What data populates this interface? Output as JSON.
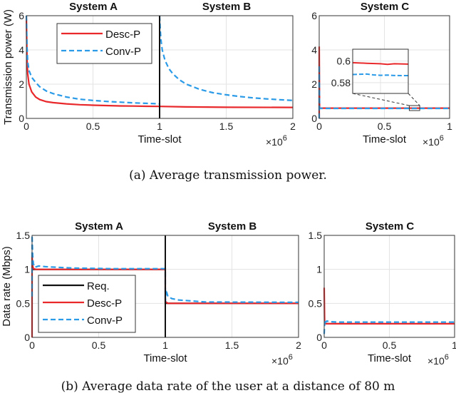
{
  "chart_data": [
    {
      "type": "line",
      "caption": "(a) Average transmission power.",
      "ylabel": "Transmission power (W)",
      "xlabel": "Time-slot",
      "x_multiplier": "×10^6",
      "colors": {
        "Desc-P": "#e8282b",
        "Conv-P": "#2b9be8"
      },
      "legend": {
        "placement": "top-left of System A",
        "entries": [
          "Desc-P",
          "Conv-P"
        ]
      },
      "panels": [
        {
          "title": "System A / System B",
          "titles": [
            "System A",
            "System B"
          ],
          "xlim": [
            0,
            2
          ],
          "ylim": [
            0,
            6
          ],
          "xticks": [
            "0",
            "0.5",
            "1",
            "1.5",
            "2"
          ],
          "yticks": [
            "0",
            "2",
            "4",
            "6"
          ],
          "series": [
            {
              "name": "Desc-P",
              "style": "solid",
              "x": [
                0,
                0.005,
                0.01,
                0.02,
                0.04,
                0.07,
                0.1,
                0.15,
                0.2,
                0.3,
                0.4,
                0.5,
                0.6,
                0.7,
                0.8,
                0.9,
                1.0,
                1.2,
                1.5,
                2.0
              ],
              "y": [
                6,
                3.5,
                2.6,
                2.0,
                1.55,
                1.25,
                1.1,
                0.98,
                0.92,
                0.85,
                0.8,
                0.77,
                0.75,
                0.73,
                0.72,
                0.71,
                0.7,
                0.67,
                0.65,
                0.64
              ]
            },
            {
              "name": "Conv-P",
              "style": "dashed",
              "x": [
                0,
                0.005,
                0.01,
                0.02,
                0.04,
                0.07,
                0.1,
                0.15,
                0.2,
                0.3,
                0.4,
                0.5,
                0.6,
                0.7,
                0.8,
                0.9,
                1.0
              ],
              "y": [
                6,
                4.2,
                3.3,
                2.8,
                2.4,
                2.1,
                1.85,
                1.6,
                1.45,
                1.25,
                1.12,
                1.05,
                0.99,
                0.95,
                0.91,
                0.88,
                0.85
              ]
            },
            {
              "name": "Conv-P",
              "style": "dashed",
              "x": [
                1,
                1.005,
                1.01,
                1.02,
                1.04,
                1.07,
                1.1,
                1.15,
                1.2,
                1.3,
                1.4,
                1.5,
                1.6,
                1.7,
                1.8,
                1.9,
                2.0
              ],
              "y": [
                6,
                5.2,
                4.6,
                4.0,
                3.4,
                2.9,
                2.6,
                2.25,
                2.0,
                1.7,
                1.5,
                1.38,
                1.28,
                1.2,
                1.14,
                1.09,
                1.05
              ]
            }
          ]
        },
        {
          "title": "System C",
          "titles": [
            "System C"
          ],
          "xlim": [
            0,
            1
          ],
          "ylim": [
            0,
            6
          ],
          "xticks": [
            "0",
            "0.5",
            "1"
          ],
          "yticks": [
            "0",
            "2",
            "4",
            "6"
          ],
          "series": [
            {
              "name": "Desc-P",
              "style": "solid",
              "x": [
                0,
                0,
                0.003,
                0.006,
                1
              ],
              "y": [
                0,
                4.2,
                0.62,
                0.6,
                0.6
              ]
            },
            {
              "name": "Conv-P",
              "style": "dashed",
              "x": [
                0,
                0,
                0.003,
                0.006,
                1
              ],
              "y": [
                0,
                3.1,
                0.6,
                0.585,
                0.584
              ]
            }
          ],
          "inset": {
            "xlim": [
              0.68,
              0.76
            ],
            "ylim": [
              0.57,
              0.611
            ],
            "yticks": [
              "0.58",
              "0.6"
            ],
            "series": [
              {
                "name": "Desc-P",
                "style": "solid",
                "x": [
                  0.68,
                  0.7,
                  0.72,
                  0.73,
                  0.74,
                  0.76
                ],
                "y": [
                  0.5985,
                  0.598,
                  0.5975,
                  0.597,
                  0.5975,
                  0.5972
                ]
              },
              {
                "name": "Conv-P",
                "style": "dashed",
                "x": [
                  0.68,
                  0.69,
                  0.7,
                  0.71,
                  0.72,
                  0.73,
                  0.74,
                  0.76
                ],
                "y": [
                  0.5875,
                  0.5878,
                  0.588,
                  0.5872,
                  0.5868,
                  0.587,
                  0.5866,
                  0.5865
                ]
              }
            ]
          }
        }
      ]
    },
    {
      "type": "line",
      "caption": "(b) Average data rate of the user at a distance of 80 m",
      "ylabel": "Data rate (Mbps)",
      "xlabel": "Time-slot",
      "x_multiplier": "×10^6",
      "colors": {
        "Req.": "#111111",
        "Desc-P": "#e8282b",
        "Conv-P": "#2b9be8"
      },
      "legend": {
        "placement": "bottom-left of System A",
        "entries": [
          "Req.",
          "Desc-P",
          "Conv-P"
        ]
      },
      "panels": [
        {
          "title": "System A / System B",
          "titles": [
            "System A",
            "System B"
          ],
          "xlim": [
            0,
            2
          ],
          "ylim": [
            0,
            1.5
          ],
          "xticks": [
            "0",
            "0.5",
            "1",
            "1.5",
            "2"
          ],
          "yticks": [
            "0",
            "0.5",
            "1",
            "1.5"
          ],
          "series": [
            {
              "name": "Req.",
              "style": "solid",
              "x": [
                0,
                1,
                1,
                2
              ],
              "y": [
                1,
                1,
                0.5,
                0.5
              ]
            },
            {
              "name": "Desc-P",
              "style": "solid",
              "x": [
                0,
                0,
                0.005,
                0.01,
                0.03,
                0.1,
                1,
                1,
                1.005,
                1.02,
                2
              ],
              "y": [
                0,
                1.2,
                1.05,
                1.01,
                1.0,
                1.0,
                1.0,
                0.5,
                0.52,
                0.5,
                0.5
              ]
            },
            {
              "name": "Conv-P",
              "style": "dashed",
              "x": [
                0,
                0,
                0.005,
                0.01,
                0.02,
                0.05,
                0.1,
                0.3,
                0.6,
                1,
                1,
                1.005,
                1.02,
                1.05,
                1.1,
                1.3,
                2
              ],
              "y": [
                0.6,
                1.5,
                1.2,
                1.08,
                1.03,
                1.05,
                1.04,
                1.02,
                1.01,
                1.01,
                0.5,
                0.7,
                0.6,
                0.57,
                0.55,
                0.52,
                0.515
              ]
            }
          ]
        },
        {
          "title": "System C",
          "titles": [
            "System C"
          ],
          "xlim": [
            0,
            1
          ],
          "ylim": [
            0,
            1.5
          ],
          "xticks": [
            "0",
            "0.5",
            "1"
          ],
          "yticks": [
            "0",
            "0.5",
            "1",
            "1.5"
          ],
          "series": [
            {
              "name": "Req.",
              "style": "solid",
              "x": [
                0,
                1
              ],
              "y": [
                0.2,
                0.2
              ]
            },
            {
              "name": "Desc-P",
              "style": "solid",
              "x": [
                0,
                0.003,
                0.004,
                0.01,
                1
              ],
              "y": [
                0.73,
                0.3,
                0.2,
                0.2,
                0.2
              ]
            },
            {
              "name": "Conv-P",
              "style": "dashed",
              "x": [
                0,
                0.005,
                0.01,
                0.02,
                0.05,
                0.1,
                1
              ],
              "y": [
                0.05,
                0.26,
                0.22,
                0.24,
                0.23,
                0.225,
                0.225
              ]
            }
          ]
        }
      ]
    }
  ]
}
